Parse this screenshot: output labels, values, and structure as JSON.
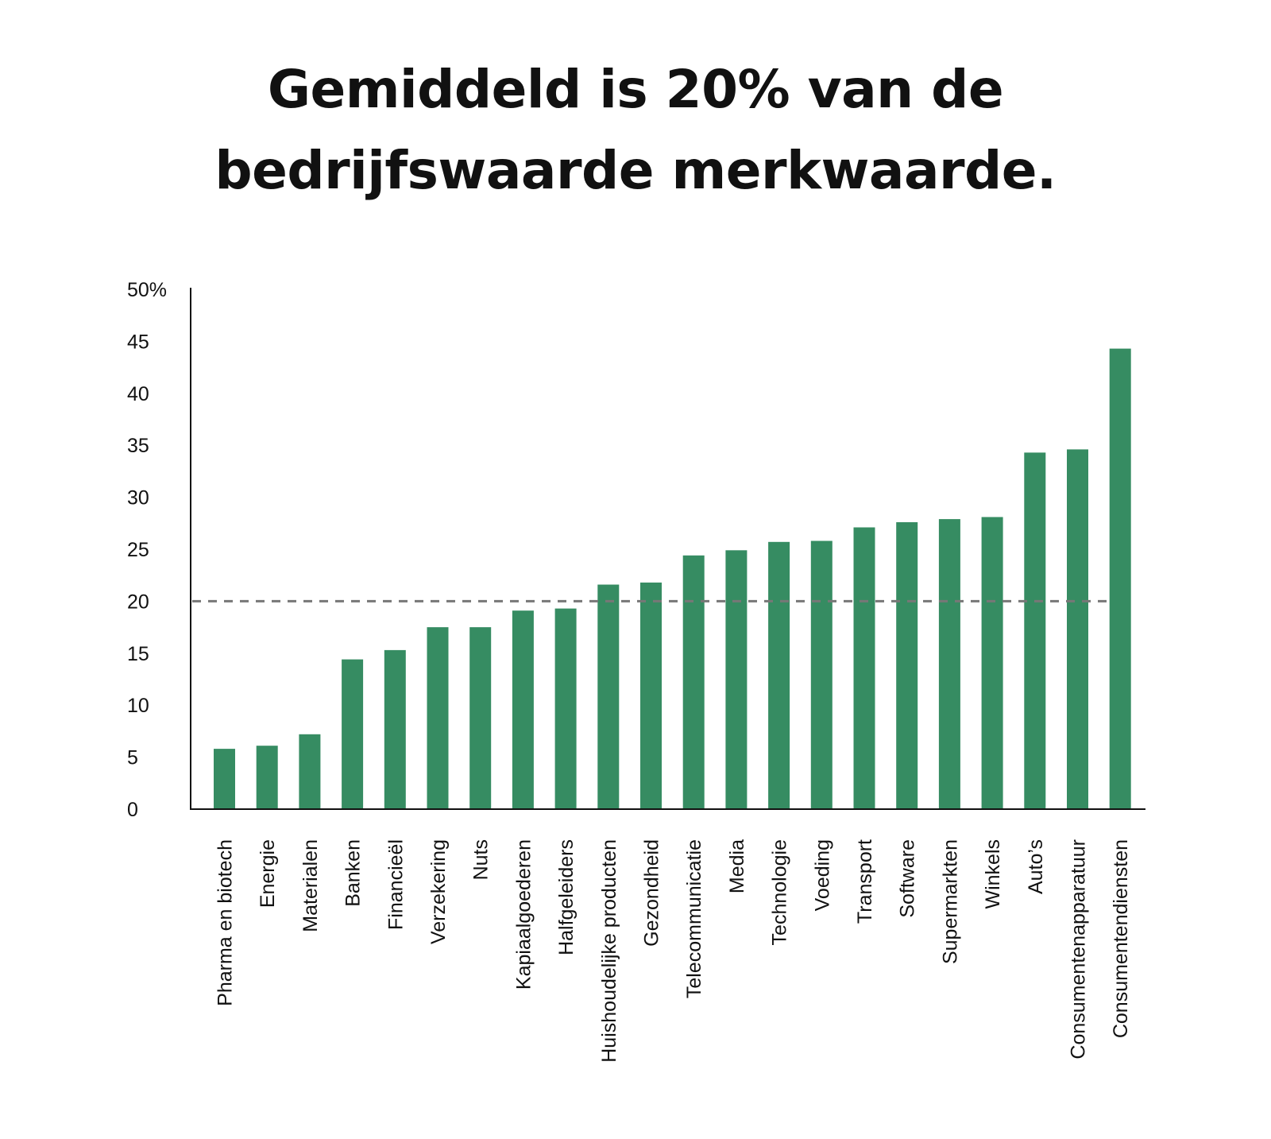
{
  "title_lines": [
    "Gemiddeld is 20% van de",
    "bedrijfswaarde merkwaarde."
  ],
  "colors": {
    "bar": "#368c62",
    "axis": "#111111",
    "average_line": "#777777",
    "text": "#111111"
  },
  "chart_data": {
    "type": "bar",
    "title": "Gemiddeld is 20% van de bedrijfswaarde merkwaarde.",
    "xlabel": "",
    "ylabel": "",
    "ylim": [
      0,
      50
    ],
    "yticks": [
      0,
      5,
      10,
      15,
      20,
      25,
      30,
      35,
      40,
      45,
      50
    ],
    "ytick_labels": [
      "0",
      "5",
      "10",
      "15",
      "20",
      "25",
      "30",
      "35",
      "40",
      "45",
      "50%"
    ],
    "grid": false,
    "legend": "none",
    "average_line": 20,
    "categories": [
      "Pharma en biotech",
      "Energie",
      "Materialen",
      "Banken",
      "Financieël",
      "Verzekering",
      "Nuts",
      "Kapiaalgoederen",
      "Halfgeleiders",
      "Huishoudelijke producten",
      "Gezondheid",
      "Telecommunicatie",
      "Media",
      "Technologie",
      "Voeding",
      "Transport",
      "Software",
      "Supermarkten",
      "Winkels",
      "Auto’s",
      "Consumentenapparatuur",
      "Consumentendiensten"
    ],
    "values": [
      5.8,
      6.1,
      7.2,
      14.4,
      15.3,
      17.5,
      17.5,
      19.1,
      19.3,
      21.6,
      21.8,
      24.4,
      24.9,
      25.7,
      25.8,
      27.1,
      27.6,
      27.9,
      28.1,
      34.3,
      34.6,
      44.3
    ]
  }
}
